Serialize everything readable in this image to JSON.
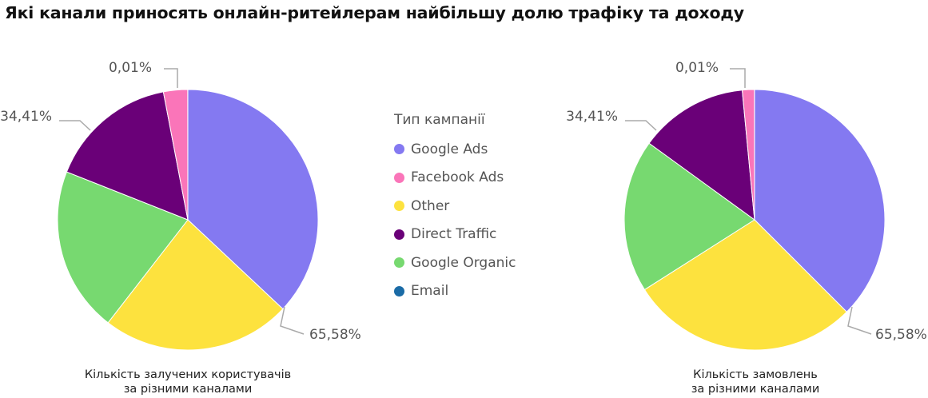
{
  "title": "Які канали приносять онлайн-ритейлерам найбільшу долю трафіку та доходу",
  "legend": {
    "title": "Тип кампанії",
    "items": [
      {
        "label": "Google Ads",
        "color": "#8479F1"
      },
      {
        "label": "Facebook Ads",
        "color": "#FA75B9"
      },
      {
        "label": "Other",
        "color": "#FDE23E"
      },
      {
        "label": "Direct Traffic",
        "color": "#6A0078"
      },
      {
        "label": "Google Organic",
        "color": "#77D970"
      },
      {
        "label": "Email",
        "color": "#1A6BA6"
      }
    ]
  },
  "chart_data": [
    {
      "type": "pie",
      "caption_line1": "Кількість залучених користувачів",
      "caption_line2": "за різними каналами",
      "slices": [
        {
          "label": "Google Ads",
          "value": 37.0,
          "color": "#8479F1"
        },
        {
          "label": "Other",
          "value": 23.5,
          "color": "#FDE23E"
        },
        {
          "label": "Google Organic",
          "value": 20.5,
          "color": "#77D970"
        },
        {
          "label": "Direct Traffic",
          "value": 16.0,
          "color": "#6A0078"
        },
        {
          "label": "Facebook Ads",
          "value": 3.0,
          "color": "#FA75B9"
        },
        {
          "label": "Email",
          "value": 0.01,
          "color": "#1A6BA6"
        }
      ],
      "data_labels": [
        "65,58%",
        "34,41%",
        "0,01%"
      ]
    },
    {
      "type": "pie",
      "caption_line1": "Кількість замовлень",
      "caption_line2": "за різними каналами",
      "slices": [
        {
          "label": "Google Ads",
          "value": 37.5,
          "color": "#8479F1"
        },
        {
          "label": "Other",
          "value": 28.5,
          "color": "#FDE23E"
        },
        {
          "label": "Google Organic",
          "value": 19.0,
          "color": "#77D970"
        },
        {
          "label": "Direct Traffic",
          "value": 13.5,
          "color": "#6A0078"
        },
        {
          "label": "Facebook Ads",
          "value": 1.5,
          "color": "#FA75B9"
        },
        {
          "label": "Email",
          "value": 0.01,
          "color": "#1A6BA6"
        }
      ],
      "data_labels": [
        "65,58%",
        "34,41%",
        "0,01%"
      ]
    }
  ]
}
